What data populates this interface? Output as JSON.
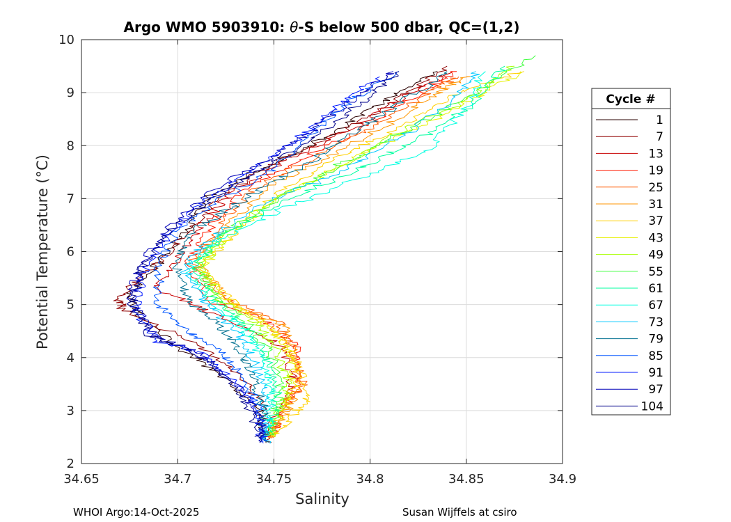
{
  "chart_data": {
    "type": "line",
    "title_prefix": "Argo WMO 5903910: ",
    "title_theta": "θ",
    "title_suffix": "-S below 500 dbar,  QC=(1,2)",
    "xlabel": "Salinity",
    "ylabel": "Potential Temperature (°C)",
    "xlim": [
      34.65,
      34.9
    ],
    "ylim": [
      2,
      10
    ],
    "x_ticks": [
      34.65,
      34.7,
      34.75,
      34.8,
      34.85,
      34.9
    ],
    "x_tick_labels": [
      "34.65",
      "34.7",
      "34.75",
      "34.8",
      "34.85",
      "34.9"
    ],
    "y_ticks": [
      2,
      3,
      4,
      5,
      6,
      7,
      8,
      9,
      10
    ],
    "y_tick_labels": [
      "2",
      "3",
      "4",
      "5",
      "6",
      "7",
      "8",
      "9",
      "10"
    ],
    "grid": true,
    "legend_title": "Cycle #",
    "legend_position": "right",
    "series": [
      {
        "name": "1",
        "color": "#2a0000",
        "points": [
          [
            34.745,
            2.4
          ],
          [
            34.742,
            3.0
          ],
          [
            34.725,
            3.6
          ],
          [
            34.7,
            4.2
          ],
          [
            34.68,
            4.8
          ],
          [
            34.675,
            5.2
          ],
          [
            34.69,
            5.8
          ],
          [
            34.705,
            6.4
          ],
          [
            34.715,
            7.0
          ],
          [
            34.745,
            7.6
          ],
          [
            34.78,
            8.2
          ],
          [
            34.805,
            8.8
          ],
          [
            34.835,
            9.4
          ]
        ]
      },
      {
        "name": "7",
        "color": "#900000",
        "points": [
          [
            34.746,
            2.4
          ],
          [
            34.745,
            3.0
          ],
          [
            34.735,
            3.6
          ],
          [
            34.712,
            4.2
          ],
          [
            34.672,
            4.9
          ],
          [
            34.668,
            5.1
          ],
          [
            34.69,
            5.8
          ],
          [
            34.708,
            6.5
          ],
          [
            34.725,
            7.1
          ],
          [
            34.752,
            7.7
          ],
          [
            34.788,
            8.3
          ],
          [
            34.815,
            8.9
          ],
          [
            34.84,
            9.5
          ]
        ]
      },
      {
        "name": "13",
        "color": "#c80000",
        "points": [
          [
            34.748,
            2.5
          ],
          [
            34.752,
            3.0
          ],
          [
            34.76,
            3.6
          ],
          [
            34.755,
            4.2
          ],
          [
            34.72,
            4.8
          ],
          [
            34.69,
            5.3
          ],
          [
            34.7,
            5.9
          ],
          [
            34.712,
            6.5
          ],
          [
            34.728,
            7.1
          ],
          [
            34.76,
            7.8
          ],
          [
            34.795,
            8.4
          ],
          [
            34.822,
            9.0
          ],
          [
            34.843,
            9.4
          ]
        ]
      },
      {
        "name": "19",
        "color": "#ff1a00",
        "points": [
          [
            34.748,
            2.5
          ],
          [
            34.755,
            3.0
          ],
          [
            34.762,
            3.6
          ],
          [
            34.762,
            4.2
          ],
          [
            34.745,
            4.7
          ],
          [
            34.715,
            5.1
          ],
          [
            34.705,
            5.8
          ],
          [
            34.718,
            6.5
          ],
          [
            34.735,
            7.2
          ],
          [
            34.768,
            7.8
          ],
          [
            34.8,
            8.4
          ],
          [
            34.826,
            9.0
          ],
          [
            34.845,
            9.4
          ]
        ]
      },
      {
        "name": "25",
        "color": "#ff5a00",
        "points": [
          [
            34.748,
            2.5
          ],
          [
            34.756,
            3.0
          ],
          [
            34.765,
            3.5
          ],
          [
            34.76,
            4.1
          ],
          [
            34.752,
            4.7
          ],
          [
            34.725,
            5.1
          ],
          [
            34.708,
            5.8
          ],
          [
            34.722,
            6.5
          ],
          [
            34.74,
            7.2
          ],
          [
            34.772,
            7.8
          ],
          [
            34.805,
            8.4
          ],
          [
            34.83,
            9.0
          ],
          [
            34.846,
            9.3
          ]
        ]
      },
      {
        "name": "31",
        "color": "#ff9500",
        "points": [
          [
            34.748,
            2.5
          ],
          [
            34.757,
            3.0
          ],
          [
            34.763,
            3.5
          ],
          [
            34.76,
            4.1
          ],
          [
            34.755,
            4.6
          ],
          [
            34.728,
            5.0
          ],
          [
            34.71,
            5.8
          ],
          [
            34.726,
            6.5
          ],
          [
            34.745,
            7.2
          ],
          [
            34.778,
            7.8
          ],
          [
            34.81,
            8.4
          ],
          [
            34.835,
            9.0
          ],
          [
            34.85,
            9.3
          ]
        ]
      },
      {
        "name": "37",
        "color": "#ffd000",
        "points": [
          [
            34.75,
            2.5
          ],
          [
            34.76,
            2.9
          ],
          [
            34.768,
            3.3
          ],
          [
            34.762,
            3.9
          ],
          [
            34.75,
            4.5
          ],
          [
            34.73,
            5.0
          ],
          [
            34.712,
            5.7
          ],
          [
            34.73,
            6.4
          ],
          [
            34.752,
            7.1
          ],
          [
            34.785,
            7.8
          ],
          [
            34.818,
            8.4
          ],
          [
            34.845,
            9.0
          ],
          [
            34.88,
            9.4
          ]
        ]
      },
      {
        "name": "43",
        "color": "#e6f000",
        "points": [
          [
            34.748,
            2.5
          ],
          [
            34.755,
            3.0
          ],
          [
            34.76,
            3.5
          ],
          [
            34.758,
            4.1
          ],
          [
            34.748,
            4.6
          ],
          [
            34.725,
            5.1
          ],
          [
            34.712,
            5.7
          ],
          [
            34.728,
            6.3
          ],
          [
            34.752,
            7.0
          ],
          [
            34.788,
            7.7
          ],
          [
            34.822,
            8.3
          ],
          [
            34.855,
            8.9
          ],
          [
            34.878,
            9.4
          ]
        ]
      },
      {
        "name": "49",
        "color": "#a8ff00",
        "points": [
          [
            34.748,
            2.5
          ],
          [
            34.753,
            3.0
          ],
          [
            34.757,
            3.5
          ],
          [
            34.752,
            4.1
          ],
          [
            34.742,
            4.6
          ],
          [
            34.722,
            5.1
          ],
          [
            34.712,
            5.7
          ],
          [
            34.725,
            6.3
          ],
          [
            34.75,
            7.0
          ],
          [
            34.785,
            7.6
          ],
          [
            34.818,
            8.3
          ],
          [
            34.852,
            8.9
          ],
          [
            34.875,
            9.5
          ]
        ]
      },
      {
        "name": "55",
        "color": "#40ff40",
        "points": [
          [
            34.747,
            2.5
          ],
          [
            34.751,
            3.0
          ],
          [
            34.754,
            3.5
          ],
          [
            34.748,
            4.1
          ],
          [
            34.738,
            4.6
          ],
          [
            34.72,
            5.1
          ],
          [
            34.71,
            5.7
          ],
          [
            34.722,
            6.3
          ],
          [
            34.748,
            6.9
          ],
          [
            34.782,
            7.6
          ],
          [
            34.815,
            8.2
          ],
          [
            34.85,
            8.9
          ],
          [
            34.886,
            9.7
          ]
        ]
      },
      {
        "name": "61",
        "color": "#00ffa0",
        "points": [
          [
            34.747,
            2.5
          ],
          [
            34.75,
            3.0
          ],
          [
            34.752,
            3.5
          ],
          [
            34.745,
            4.1
          ],
          [
            34.735,
            4.6
          ],
          [
            34.718,
            5.1
          ],
          [
            34.708,
            5.7
          ],
          [
            34.722,
            6.3
          ],
          [
            34.752,
            6.9
          ],
          [
            34.79,
            7.5
          ],
          [
            34.825,
            8.1
          ],
          [
            34.855,
            8.8
          ],
          [
            34.87,
            9.5
          ]
        ]
      },
      {
        "name": "67",
        "color": "#00ffe0",
        "points": [
          [
            34.746,
            2.5
          ],
          [
            34.748,
            3.0
          ],
          [
            34.748,
            3.5
          ],
          [
            34.742,
            4.1
          ],
          [
            34.732,
            4.6
          ],
          [
            34.715,
            5.1
          ],
          [
            34.705,
            5.7
          ],
          [
            34.72,
            6.2
          ],
          [
            34.755,
            6.8
          ],
          [
            34.795,
            7.4
          ],
          [
            34.83,
            7.9
          ],
          [
            34.85,
            8.7
          ],
          [
            34.86,
            9.4
          ]
        ]
      },
      {
        "name": "73",
        "color": "#00c8ff",
        "points": [
          [
            34.746,
            2.4
          ],
          [
            34.746,
            3.0
          ],
          [
            34.744,
            3.5
          ],
          [
            34.738,
            4.1
          ],
          [
            34.728,
            4.6
          ],
          [
            34.712,
            5.1
          ],
          [
            34.703,
            5.7
          ],
          [
            34.715,
            6.2
          ],
          [
            34.745,
            6.9
          ],
          [
            34.785,
            7.5
          ],
          [
            34.818,
            8.2
          ],
          [
            34.845,
            8.9
          ],
          [
            34.855,
            9.4
          ]
        ]
      },
      {
        "name": "79",
        "color": "#007090",
        "points": [
          [
            34.745,
            2.4
          ],
          [
            34.745,
            3.0
          ],
          [
            34.74,
            3.6
          ],
          [
            34.732,
            4.1
          ],
          [
            34.722,
            4.6
          ],
          [
            34.705,
            5.1
          ],
          [
            34.698,
            5.8
          ],
          [
            34.708,
            6.4
          ],
          [
            34.735,
            7.0
          ],
          [
            34.765,
            7.6
          ],
          [
            34.79,
            8.2
          ],
          [
            34.82,
            8.9
          ],
          [
            34.84,
            9.4
          ]
        ]
      },
      {
        "name": "85",
        "color": "#0055ff",
        "points": [
          [
            34.745,
            2.4
          ],
          [
            34.743,
            3.0
          ],
          [
            34.735,
            3.6
          ],
          [
            34.722,
            4.1
          ],
          [
            34.705,
            4.5
          ],
          [
            34.69,
            5.0
          ],
          [
            34.69,
            5.8
          ],
          [
            34.7,
            6.4
          ],
          [
            34.722,
            7.0
          ],
          [
            34.752,
            7.6
          ],
          [
            34.772,
            8.3
          ],
          [
            34.792,
            8.9
          ],
          [
            34.815,
            9.4
          ]
        ]
      },
      {
        "name": "91",
        "color": "#0018ff",
        "points": [
          [
            34.744,
            2.4
          ],
          [
            34.742,
            3.0
          ],
          [
            34.73,
            3.6
          ],
          [
            34.712,
            4.1
          ],
          [
            34.69,
            4.3
          ],
          [
            34.678,
            4.9
          ],
          [
            34.682,
            5.6
          ],
          [
            34.695,
            6.3
          ],
          [
            34.715,
            7.0
          ],
          [
            34.742,
            7.6
          ],
          [
            34.765,
            8.2
          ],
          [
            34.785,
            8.8
          ],
          [
            34.805,
            9.3
          ]
        ]
      },
      {
        "name": "97",
        "color": "#0000b8",
        "points": [
          [
            34.744,
            2.4
          ],
          [
            34.74,
            3.0
          ],
          [
            34.728,
            3.6
          ],
          [
            34.71,
            4.1
          ],
          [
            34.688,
            4.4
          ],
          [
            34.675,
            5.1
          ],
          [
            34.68,
            5.7
          ],
          [
            34.694,
            6.4
          ],
          [
            34.716,
            7.1
          ],
          [
            34.745,
            7.7
          ],
          [
            34.77,
            8.3
          ],
          [
            34.792,
            8.9
          ],
          [
            34.812,
            9.4
          ]
        ]
      },
      {
        "name": "104",
        "color": "#00008a",
        "points": [
          [
            34.743,
            2.4
          ],
          [
            34.738,
            3.0
          ],
          [
            34.726,
            3.6
          ],
          [
            34.708,
            4.1
          ],
          [
            34.686,
            4.4
          ],
          [
            34.676,
            5.0
          ],
          [
            34.682,
            5.7
          ],
          [
            34.696,
            6.4
          ],
          [
            34.718,
            7.0
          ],
          [
            34.746,
            7.6
          ],
          [
            34.772,
            8.2
          ],
          [
            34.795,
            8.8
          ],
          [
            34.815,
            9.4
          ]
        ]
      }
    ]
  },
  "footer": {
    "left": "WHOI Argo:14-Oct-2025",
    "right": "Susan Wijffels at csiro"
  }
}
